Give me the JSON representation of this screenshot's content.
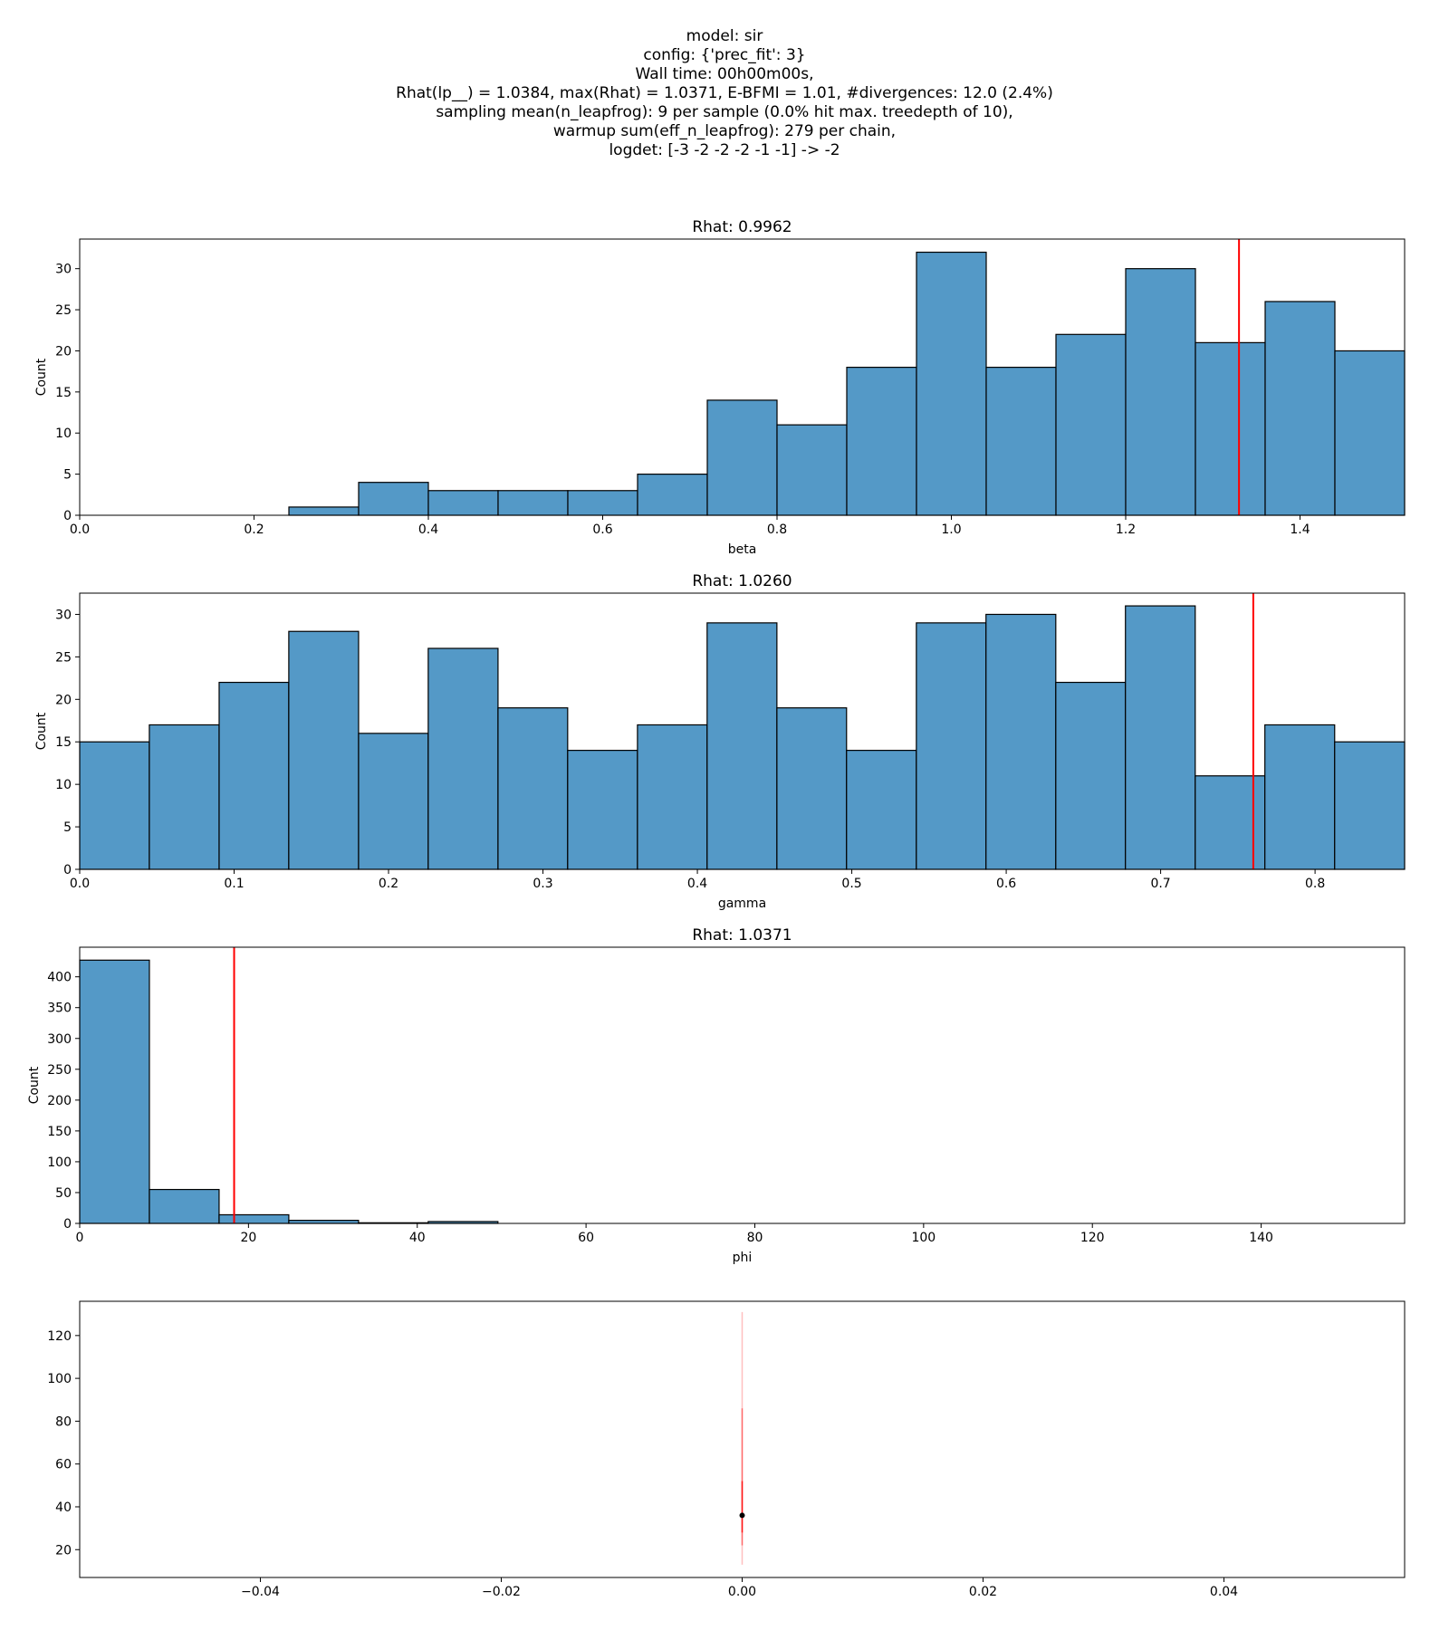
{
  "header": {
    "lines": [
      "model: sir",
      "config: {'prec_fit': 3}",
      "Wall time: 00h00m00s,",
      "Rhat(lp__) = 1.0384, max(Rhat) = 1.0371, E-BFMI = 1.01, #divergences: 12.0 (2.4%)",
      "sampling mean(n_leapfrog): 9 per sample (0.0% hit max. treedepth of 10),",
      "warmup sum(eff_n_leapfrog): 279 per chain,",
      "logdet: [-3 -2 -2 -2 -1 -1] -> -2"
    ]
  },
  "colors": {
    "bar": "#5499c7",
    "edge": "#000000",
    "marker": "#ff0000",
    "point": "#000000"
  },
  "chart_data": [
    {
      "type": "bar",
      "title": "Rhat: 0.9962",
      "xlabel": "beta",
      "ylabel": "Count",
      "xlim": [
        0,
        1.52
      ],
      "ylim": [
        0,
        33.6
      ],
      "xticks": [
        0.0,
        0.2,
        0.4,
        0.6,
        0.8,
        1.0,
        1.2,
        1.4
      ],
      "xtick_labels": [
        "0.0",
        "0.2",
        "0.4",
        "0.6",
        "0.8",
        "1.0",
        "1.2",
        "1.4"
      ],
      "yticks": [
        0,
        5,
        10,
        15,
        20,
        25,
        30
      ],
      "ytick_labels": [
        "0",
        "5",
        "10",
        "15",
        "20",
        "25",
        "30"
      ],
      "bin_edges": [
        0.24,
        0.32,
        0.4,
        0.48,
        0.56,
        0.64,
        0.72,
        0.8,
        0.88,
        0.96,
        1.04,
        1.12,
        1.2,
        1.28,
        1.36,
        1.44,
        1.52
      ],
      "values": [
        1,
        4,
        3,
        3,
        3,
        5,
        14,
        11,
        18,
        32,
        18,
        22,
        30,
        21,
        26,
        20
      ],
      "vline": 1.33
    },
    {
      "type": "bar",
      "title": "Rhat: 1.0260",
      "xlabel": "gamma",
      "ylabel": "Count",
      "xlim": [
        0,
        0.858
      ],
      "ylim": [
        0,
        32.5
      ],
      "xticks": [
        0.0,
        0.1,
        0.2,
        0.3,
        0.4,
        0.5,
        0.6,
        0.7,
        0.8
      ],
      "xtick_labels": [
        "0.0",
        "0.1",
        "0.2",
        "0.3",
        "0.4",
        "0.5",
        "0.6",
        "0.7",
        "0.8"
      ],
      "yticks": [
        0,
        5,
        10,
        15,
        20,
        25,
        30
      ],
      "ytick_labels": [
        "0",
        "5",
        "10",
        "15",
        "20",
        "25",
        "30"
      ],
      "bin_edges": [
        0.0,
        0.0451,
        0.0903,
        0.1354,
        0.1806,
        0.2257,
        0.2709,
        0.316,
        0.3612,
        0.4063,
        0.4515,
        0.4966,
        0.5418,
        0.5869,
        0.6321,
        0.6772,
        0.7224,
        0.7675,
        0.8127,
        0.858
      ],
      "values": [
        15,
        17,
        22,
        28,
        16,
        26,
        19,
        14,
        17,
        29,
        19,
        14,
        29,
        30,
        22,
        31,
        11,
        17,
        15
      ],
      "vline": 0.76
    },
    {
      "type": "bar",
      "title": "Rhat: 1.0371",
      "xlabel": "phi",
      "ylabel": "Count",
      "xlim": [
        0,
        157
      ],
      "ylim": [
        0,
        448
      ],
      "xticks": [
        0,
        20,
        40,
        60,
        80,
        100,
        120,
        140
      ],
      "xtick_labels": [
        "0",
        "20",
        "40",
        "60",
        "80",
        "100",
        "120",
        "140"
      ],
      "yticks": [
        0,
        50,
        100,
        150,
        200,
        250,
        300,
        350,
        400
      ],
      "ytick_labels": [
        "0",
        "50",
        "100",
        "150",
        "200",
        "250",
        "300",
        "350",
        "400"
      ],
      "bin_edges": [
        0,
        8.26,
        16.52,
        24.78,
        33.04,
        41.3,
        49.56
      ],
      "values": [
        427,
        55,
        14,
        5,
        1,
        3
      ],
      "vline": 18.3
    },
    {
      "type": "scatter",
      "title": "",
      "xlabel": "",
      "ylabel": "",
      "xlim": [
        -0.055,
        0.055
      ],
      "ylim": [
        7,
        136
      ],
      "xticks": [
        -0.04,
        -0.02,
        0.0,
        0.02,
        0.04
      ],
      "xtick_labels": [
        "−0.04",
        "−0.02",
        "0.00",
        "0.02",
        "0.04"
      ],
      "yticks": [
        20,
        40,
        60,
        80,
        100,
        120
      ],
      "ytick_labels": [
        "20",
        "40",
        "60",
        "80",
        "100",
        "120"
      ],
      "point": {
        "x": 0.0,
        "y": 36
      },
      "intervals": [
        {
          "x": 0.0,
          "low": 13,
          "high": 131,
          "opacity": 0.25
        },
        {
          "x": 0.0,
          "low": 22,
          "high": 86,
          "opacity": 0.45
        },
        {
          "x": 0.0,
          "low": 28,
          "high": 52,
          "opacity": 0.8
        }
      ]
    }
  ]
}
